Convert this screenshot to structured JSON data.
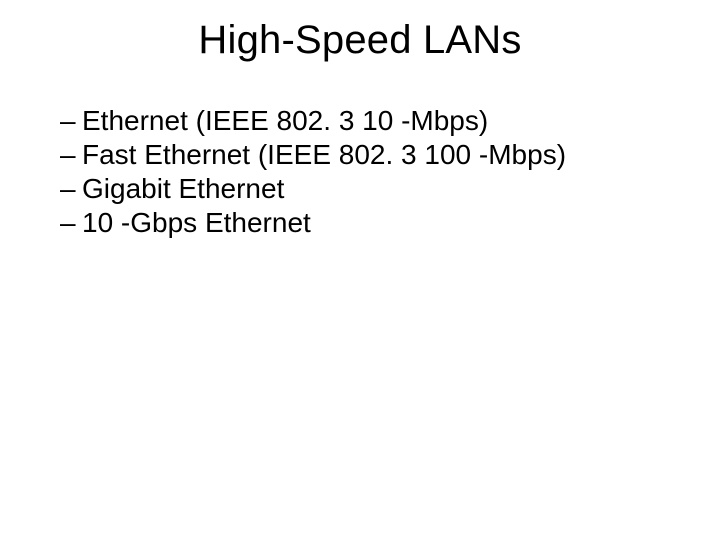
{
  "title": "High-Speed LANs",
  "bullets": [
    "Ethernet (IEEE 802. 3 10 -Mbps)",
    "Fast Ethernet (IEEE 802. 3 100 -Mbps)",
    "Gigabit Ethernet",
    "10 -Gbps Ethernet"
  ],
  "style": {
    "background_color": "#ffffff",
    "text_color": "#000000",
    "font_family": "Arial",
    "title_fontsize": 40,
    "body_fontsize": 28,
    "dash": "–"
  }
}
